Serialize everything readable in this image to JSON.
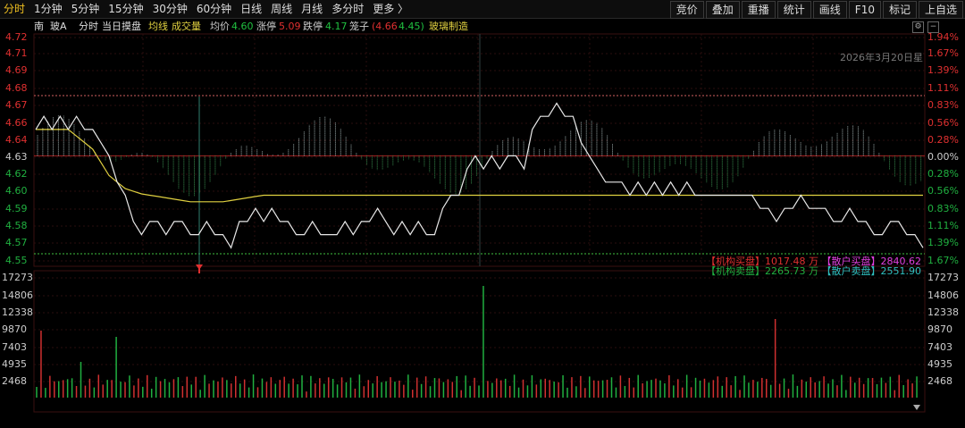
{
  "toolbar": {
    "tabs": [
      "分时",
      "1分钟",
      "5分钟",
      "15分钟",
      "30分钟",
      "60分钟",
      "日线",
      "周线",
      "月线",
      "多分时",
      "更多 〉"
    ],
    "right_buttons": [
      "竞价",
      "叠加",
      "重播",
      "统计",
      "画线",
      "F10",
      "标记",
      "上自选"
    ]
  },
  "info": {
    "flag": "南",
    "stock_name": "玻A",
    "mode": "分时",
    "view": "当日摸盘",
    "avg_line": "均线",
    "volume": "成交量",
    "avg_label": "均价",
    "avg_value": "4.60",
    "limit_up_label": "涨停",
    "limit_up_value": "5.09",
    "limit_down_label": "跌停",
    "limit_down_value": "4.17",
    "bid_ask_label": "笼子",
    "bid_ask_value_1": "(4.66",
    "bid_ask_value_2": "4.45)",
    "sector": "玻璃制造"
  },
  "date_label": "2026年3月20日星",
  "price_axis_left": [
    "4.72",
    "4.71",
    "4.69",
    "4.68",
    "4.67",
    "4.66",
    "4.64",
    "4.63",
    "4.62",
    "4.60",
    "4.59",
    "4.58",
    "4.57",
    "4.55"
  ],
  "pct_axis_right": [
    "1.94%",
    "1.67%",
    "1.39%",
    "1.11%",
    "0.83%",
    "0.56%",
    "0.28%",
    "0.00%",
    "0.28%",
    "0.56%",
    "0.83%",
    "1.11%",
    "1.39%",
    "1.67%"
  ],
  "volume_axis": [
    "17273",
    "14806",
    "12338",
    "9870",
    "7403",
    "4935",
    "2468"
  ],
  "stats": {
    "inst_buy_label": "【机构买盘】",
    "inst_buy_value": "1017.48 万",
    "retail_buy_label": "【散户买盘】",
    "retail_buy_value": "2840.62",
    "inst_sell_label": "【机构卖盘】",
    "inst_sell_value": "2265.73 万",
    "retail_sell_label": "【散户卖盘】",
    "retail_sell_value": "2551.90"
  },
  "colors": {
    "up": "#e03030",
    "down": "#20b040",
    "price_line": "#e8e8e8",
    "avg_line": "#e0d040",
    "accent_tab": "#f0c020",
    "teal": "#30c0c0",
    "magenta": "#e040e0"
  },
  "chart_data": {
    "type": "line",
    "ylim": [
      4.55,
      4.72
    ],
    "prev_close": 4.63,
    "series": [
      {
        "values": [
          4.65,
          4.66,
          4.65,
          4.66,
          4.65,
          4.66,
          4.65,
          4.65,
          4.64,
          4.63,
          4.61,
          4.6,
          4.58,
          4.57,
          4.58,
          4.58,
          4.57,
          4.58,
          4.58,
          4.57,
          4.57,
          4.58,
          4.57,
          4.57,
          4.56,
          4.58,
          4.58,
          4.59,
          4.58,
          4.59,
          4.58,
          4.58,
          4.57,
          4.57,
          4.58,
          4.57,
          4.57,
          4.57,
          4.58,
          4.57,
          4.58,
          4.58,
          4.59,
          4.58,
          4.57,
          4.58,
          4.57,
          4.58,
          4.57,
          4.57,
          4.59,
          4.6,
          4.6,
          4.62,
          4.63,
          4.62,
          4.63,
          4.62,
          4.63,
          4.63,
          4.62,
          4.65,
          4.66,
          4.66,
          4.67,
          4.66,
          4.66,
          4.64,
          4.63,
          4.62,
          4.61,
          4.61,
          4.61,
          4.6,
          4.61,
          4.6,
          4.61,
          4.6,
          4.61,
          4.6,
          4.61,
          4.6,
          4.6,
          4.6,
          4.6,
          4.6,
          4.6,
          4.6,
          4.6,
          4.59,
          4.59,
          4.58,
          4.59,
          4.59,
          4.6,
          4.59,
          4.59,
          4.59,
          4.58,
          4.58,
          4.59,
          4.58,
          4.58,
          4.57,
          4.57,
          4.58,
          4.58,
          4.57,
          4.57,
          4.56
        ]
      },
      {
        "values": [
          4.65,
          4.65,
          4.65,
          4.65,
          4.65,
          4.645,
          4.64,
          4.635,
          4.625,
          4.615,
          4.61,
          4.605,
          4.603,
          4.601,
          4.6,
          4.599,
          4.598,
          4.597,
          4.596,
          4.595,
          4.595,
          4.595,
          4.595,
          4.595,
          4.596,
          4.597,
          4.598,
          4.599,
          4.6,
          4.6,
          4.6,
          4.6,
          4.6,
          4.6,
          4.6,
          4.6,
          4.6,
          4.6,
          4.6,
          4.6,
          4.6,
          4.6,
          4.6,
          4.6,
          4.6,
          4.6,
          4.6,
          4.6,
          4.6,
          4.6,
          4.6,
          4.6,
          4.6,
          4.6,
          4.6,
          4.6,
          4.6,
          4.6,
          4.6,
          4.6,
          4.6,
          4.6,
          4.6,
          4.6,
          4.6,
          4.6,
          4.6,
          4.6,
          4.6,
          4.6,
          4.6,
          4.6,
          4.6,
          4.6,
          4.6,
          4.6,
          4.6,
          4.6,
          4.6,
          4.6,
          4.6,
          4.6,
          4.6,
          4.6,
          4.6,
          4.6,
          4.6,
          4.6,
          4.6,
          4.6,
          4.6,
          4.6,
          4.6,
          4.6,
          4.6,
          4.6,
          4.6,
          4.6,
          4.6,
          4.6,
          4.6,
          4.6,
          4.6,
          4.6,
          4.6,
          4.6,
          4.6,
          4.6,
          4.6,
          4.6
        ]
      }
    ]
  }
}
